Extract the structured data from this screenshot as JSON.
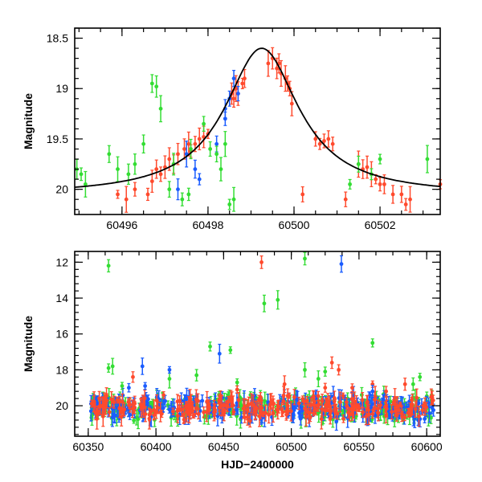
{
  "chart_data": [
    {
      "type": "scatter",
      "title": "",
      "xlabel": "",
      "ylabel": "Magnitude",
      "xlim": [
        60494.9,
        60503.4
      ],
      "ylim": [
        20.25,
        18.4
      ],
      "y_inverted": true,
      "xticks": [
        60496,
        60498,
        60500,
        60502
      ],
      "xtick_labels": [
        "60496",
        "60498",
        "60500",
        "60502"
      ],
      "yticks": [
        18.5,
        19,
        19.5,
        20
      ],
      "ytick_labels": [
        "18.5",
        "19",
        "19.5",
        "20"
      ],
      "model_curve": {
        "type": "line",
        "color": "#000000",
        "peak_x": 60499.25,
        "peak_mag": 18.6,
        "baseline_mag": 20.06
      },
      "series": [
        {
          "color": "#ff4a2d",
          "points": [
            [
              60495.9,
              20.05
            ],
            [
              60496.1,
              20.1
            ],
            [
              60496.3,
              20.0
            ],
            [
              60496.6,
              20.05
            ],
            [
              60496.7,
              19.92
            ],
            [
              60496.8,
              19.8
            ],
            [
              60496.9,
              19.85
            ],
            [
              60497.0,
              19.78
            ],
            [
              60497.1,
              19.7
            ],
            [
              60497.2,
              19.75
            ],
            [
              60497.3,
              19.65
            ],
            [
              60497.45,
              19.6
            ],
            [
              60497.55,
              19.55
            ],
            [
              60497.6,
              19.62
            ],
            [
              60497.7,
              19.55
            ],
            [
              60497.8,
              19.5
            ],
            [
              60497.9,
              19.48
            ],
            [
              60498.0,
              19.45
            ],
            [
              60498.55,
              19.05
            ],
            [
              60498.6,
              19.1
            ],
            [
              60498.65,
              19.0
            ],
            [
              60498.7,
              19.05
            ],
            [
              60498.8,
              18.95
            ],
            [
              60498.85,
              18.9
            ],
            [
              60499.4,
              18.75
            ],
            [
              60499.5,
              18.7
            ],
            [
              60499.6,
              18.8
            ],
            [
              60499.65,
              18.75
            ],
            [
              60499.7,
              18.85
            ],
            [
              60499.8,
              18.9
            ],
            [
              60499.85,
              18.95
            ],
            [
              60499.9,
              19.0
            ],
            [
              60499.95,
              19.15
            ],
            [
              60500.5,
              19.5
            ],
            [
              60500.6,
              19.55
            ],
            [
              60500.7,
              19.52
            ],
            [
              60500.8,
              19.5
            ],
            [
              60500.9,
              19.55
            ],
            [
              60501.5,
              19.75
            ],
            [
              60501.6,
              19.8
            ],
            [
              60501.7,
              19.78
            ],
            [
              60501.8,
              19.85
            ],
            [
              60501.9,
              19.9
            ],
            [
              60502.0,
              19.95
            ],
            [
              60502.1,
              19.95
            ],
            [
              60502.3,
              20.05
            ],
            [
              60502.5,
              20.05
            ],
            [
              60502.6,
              20.15
            ],
            [
              60502.7,
              20.1
            ],
            [
              60503.4,
              19.95
            ],
            [
              60500.2,
              20.05
            ],
            [
              60501.2,
              20.1
            ]
          ]
        },
        {
          "color": "#1a5cff",
          "points": [
            [
              60497.3,
              20.0
            ],
            [
              60497.5,
              19.65
            ],
            [
              60497.7,
              19.8
            ],
            [
              60497.8,
              19.9
            ],
            [
              60498.2,
              19.55
            ],
            [
              60498.4,
              19.3
            ],
            [
              60498.5,
              19.1
            ],
            [
              60498.6,
              18.9
            ],
            [
              60498.7,
              19.05
            ],
            [
              60498.4,
              19.2
            ]
          ]
        },
        {
          "color": "#33dd33",
          "points": [
            [
              60494.95,
              19.8
            ],
            [
              60495.05,
              19.85
            ],
            [
              60495.15,
              19.95
            ],
            [
              60495.7,
              19.65
            ],
            [
              60495.9,
              19.8
            ],
            [
              60496.15,
              19.85
            ],
            [
              60496.3,
              19.75
            ],
            [
              60496.5,
              19.55
            ],
            [
              60496.7,
              18.95
            ],
            [
              60496.8,
              18.98
            ],
            [
              60496.9,
              19.2
            ],
            [
              60497.1,
              20.0
            ],
            [
              60497.2,
              19.75
            ],
            [
              60497.4,
              20.1
            ],
            [
              60497.6,
              19.6
            ],
            [
              60497.9,
              19.35
            ],
            [
              60498.05,
              19.6
            ],
            [
              60498.2,
              19.65
            ],
            [
              60498.3,
              19.8
            ],
            [
              60498.4,
              19.55
            ],
            [
              60498.5,
              20.15
            ],
            [
              60498.6,
              20.1
            ],
            [
              60501.3,
              19.95
            ],
            [
              60501.5,
              19.75
            ],
            [
              60501.8,
              19.85
            ],
            [
              60502.0,
              19.7
            ],
            [
              60503.1,
              19.7
            ],
            [
              60497.55,
              20.05
            ]
          ]
        }
      ]
    },
    {
      "type": "scatter",
      "title": "",
      "xlabel": "HJD−2400000",
      "ylabel": "Magnitude",
      "xlim": [
        60340,
        60610
      ],
      "ylim": [
        21.7,
        11.4
      ],
      "y_inverted": true,
      "xticks": [
        60350,
        60400,
        60450,
        60500,
        60550,
        60600
      ],
      "xtick_labels": [
        "60350",
        "60400",
        "60450",
        "60500",
        "60550",
        "60600"
      ],
      "yticks": [
        12,
        14,
        16,
        18,
        20
      ],
      "ytick_labels": [
        "12",
        "14",
        "16",
        "18",
        "20"
      ],
      "outliers": [
        {
          "color": "#33dd33",
          "points": [
            [
              60365,
              12.2
            ],
            [
              60510,
              11.8
            ],
            [
              60480,
              14.3
            ],
            [
              60490,
              14.1
            ],
            [
              60365,
              17.9
            ],
            [
              60368,
              17.8
            ],
            [
              60440,
              16.7
            ],
            [
              60455,
              16.9
            ],
            [
              60560,
              16.5
            ],
            [
              60595,
              18.4
            ],
            [
              60410,
              18.5
            ],
            [
              60460,
              18.7
            ],
            [
              60520,
              18.5
            ],
            [
              60590,
              18.8
            ],
            [
              60375,
              18.9
            ],
            [
              60430,
              18.3
            ],
            [
              60510,
              18.0
            ],
            [
              60525,
              18.1
            ]
          ]
        },
        {
          "color": "#ff4a2d",
          "points": [
            [
              60478,
              12.0
            ],
            [
              60495,
              18.8
            ],
            [
              60525,
              19.0
            ],
            [
              60530,
              17.6
            ],
            [
              60535,
              18.0
            ],
            [
              60560,
              18.8
            ],
            [
              60570,
              19.2
            ],
            [
              60584,
              18.8
            ],
            [
              60383,
              18.4
            ],
            [
              60460,
              19.1
            ],
            [
              60545,
              19.0
            ]
          ]
        },
        {
          "color": "#1a5cff",
          "points": [
            [
              60537,
              12.1
            ],
            [
              60390,
              17.8
            ],
            [
              60410,
              18.0
            ],
            [
              60447,
              17.1
            ],
            [
              60392,
              18.9
            ],
            [
              60380,
              19.0
            ],
            [
              60560,
              19.2
            ]
          ]
        }
      ],
      "baseline_band": {
        "center_mag": 20.1,
        "spread": 0.8,
        "x_range": [
          60352,
          60605
        ]
      }
    }
  ]
}
